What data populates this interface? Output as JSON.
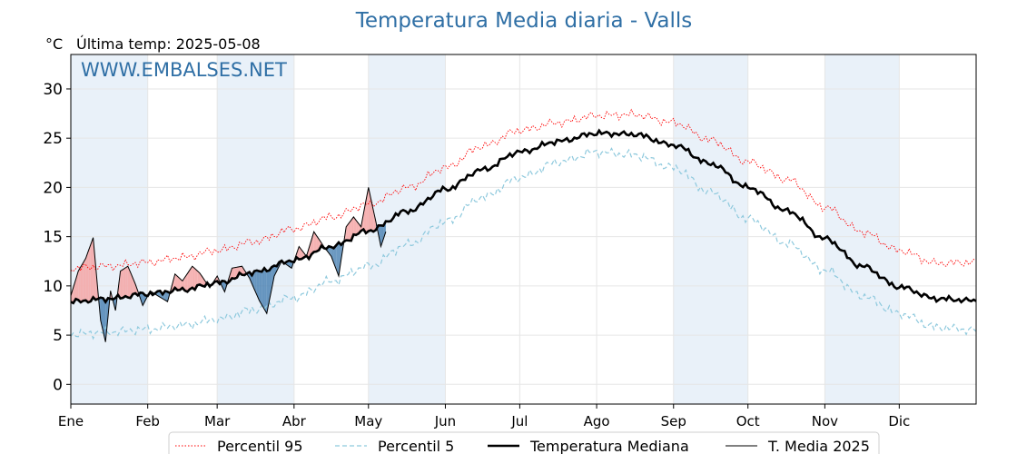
{
  "header": {
    "title": "Temperatura Media diaria - Valls",
    "unit": "°C",
    "last_temp": "Última temp: 2025-05-08",
    "watermark": "WWW.EMBALSES.NET"
  },
  "legend": {
    "p95": "Percentil 95",
    "p5": "Percentil 5",
    "median": "Temperatura Mediana",
    "current": "T. Media 2025"
  },
  "colors": {
    "p95": "#ff0000",
    "p5": "#8ec9dd",
    "median": "#000000",
    "current": "#000000",
    "above_fill": "#f4a5a5",
    "below_fill": "#2e6ea6",
    "band_shade": "#e9f1f9",
    "title": "#2f6fa5"
  },
  "chart_data": {
    "type": "line",
    "title": "Temperatura Media diaria - Valls",
    "xlabel": "",
    "ylabel": "°C",
    "xlim": [
      1,
      366
    ],
    "ylim": [
      -2,
      33.5
    ],
    "yticks": [
      0,
      5,
      10,
      15,
      20,
      25,
      30
    ],
    "month_labels": [
      "Ene",
      "Feb",
      "Mar",
      "Abr",
      "May",
      "Jun",
      "Jul",
      "Ago",
      "Sep",
      "Oct",
      "Nov",
      "Dic"
    ],
    "month_start_day": [
      1,
      32,
      60,
      91,
      121,
      152,
      182,
      213,
      244,
      274,
      305,
      335
    ],
    "shaded_months": [
      "Ene",
      "Mar",
      "May",
      "Sep",
      "Nov"
    ],
    "grid": true,
    "legend_position": "bottom",
    "anchor_day": [
      1,
      16,
      32,
      46,
      60,
      75,
      91,
      106,
      121,
      137,
      152,
      167,
      182,
      198,
      213,
      228,
      244,
      259,
      274,
      290,
      305,
      320,
      335,
      350,
      366
    ],
    "series": [
      {
        "name": "Percentil 95",
        "style": "dotted-red",
        "values": [
          11.8,
          12.0,
          12.4,
          12.9,
          13.6,
          14.5,
          15.8,
          17.0,
          18.3,
          20.0,
          22.0,
          24.2,
          25.8,
          26.6,
          27.3,
          27.4,
          26.6,
          24.8,
          22.6,
          20.8,
          18.0,
          15.5,
          13.6,
          12.3,
          12.4
        ]
      },
      {
        "name": "Percentil 5",
        "style": "dashed-lightblue",
        "values": [
          5.1,
          5.3,
          5.6,
          6.0,
          6.6,
          7.6,
          8.8,
          10.5,
          12.0,
          14.2,
          16.5,
          19.0,
          21.0,
          22.6,
          23.6,
          23.3,
          22.0,
          19.5,
          16.8,
          14.3,
          11.6,
          9.0,
          7.2,
          5.8,
          5.5
        ]
      },
      {
        "name": "Temperatura Mediana",
        "style": "thick-black",
        "values": [
          8.4,
          8.7,
          9.2,
          9.6,
          10.3,
          11.4,
          12.6,
          14.0,
          15.6,
          17.6,
          19.8,
          21.8,
          23.6,
          24.7,
          25.5,
          25.4,
          24.3,
          22.4,
          20.0,
          17.6,
          14.8,
          12.0,
          9.9,
          8.7,
          8.5
        ]
      },
      {
        "name": "T. Media 2025",
        "style": "thin-black",
        "day": [
          1,
          4,
          7,
          10,
          13,
          15,
          17,
          19,
          21,
          24,
          27,
          30,
          33,
          36,
          40,
          43,
          46,
          50,
          53,
          57,
          60,
          63,
          66,
          70,
          73,
          77,
          80,
          83,
          86,
          90,
          93,
          96,
          99,
          103,
          106,
          109,
          112,
          115,
          118,
          121,
          124,
          126,
          128
        ],
        "values": [
          9.0,
          11.5,
          12.8,
          14.9,
          6.5,
          4.3,
          9.5,
          7.5,
          11.5,
          12.0,
          10.2,
          8.0,
          9.5,
          9.0,
          8.4,
          11.2,
          10.5,
          12.0,
          11.3,
          9.8,
          11.0,
          9.4,
          11.8,
          12.0,
          10.8,
          8.5,
          7.2,
          11.0,
          12.5,
          11.8,
          14.0,
          13.0,
          15.5,
          14.0,
          13.0,
          11.0,
          16.0,
          17.0,
          16.0,
          20.0,
          16.5,
          14.0,
          15.5
        ]
      }
    ]
  }
}
